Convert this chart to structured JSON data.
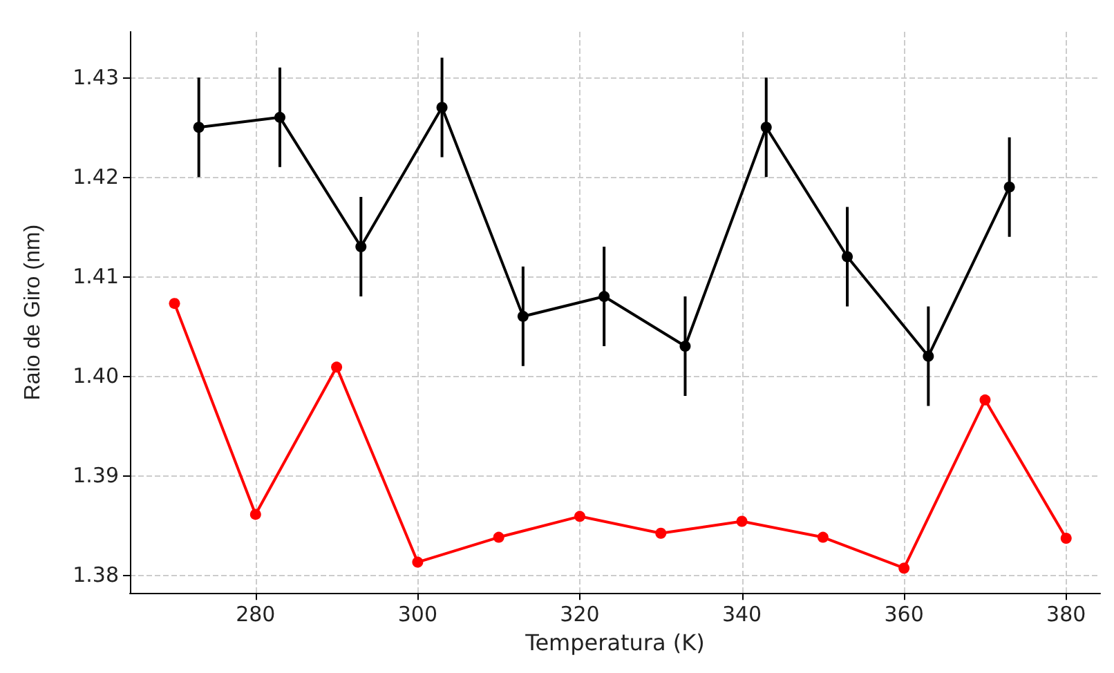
{
  "chart_data": {
    "type": "line",
    "xlabel": "Temperatura (K)",
    "ylabel": "Raio de Giro (nm)",
    "xlim": [
      264.5,
      384.2
    ],
    "ylim": [
      1.3782,
      1.4346
    ],
    "xticks": [
      280,
      300,
      320,
      340,
      360,
      380
    ],
    "yticks": [
      {
        "value": 1.38,
        "label": "1.38"
      },
      {
        "value": 1.39,
        "label": "1.39"
      },
      {
        "value": 1.4,
        "label": "1.40"
      },
      {
        "value": 1.41,
        "label": "1.41"
      },
      {
        "value": 1.42,
        "label": "1.42"
      },
      {
        "value": 1.43,
        "label": "1.43"
      }
    ],
    "grid": true,
    "marker": "circle",
    "line_style": "solid",
    "series": [
      {
        "color": "#000000",
        "x": [
          273,
          283,
          293,
          303,
          313,
          323,
          333,
          343,
          353,
          363,
          373
        ],
        "values": [
          1.425,
          1.426,
          1.413,
          1.427,
          1.406,
          1.408,
          1.403,
          1.425,
          1.412,
          1.402,
          1.419
        ],
        "errors": [
          0.005,
          0.005,
          0.005,
          0.005,
          0.005,
          0.005,
          0.005,
          0.005,
          0.005,
          0.005,
          0.005
        ]
      },
      {
        "color": "#ff0000",
        "x": [
          270,
          280,
          290,
          300,
          310,
          320,
          330,
          340,
          350,
          360,
          370,
          380
        ],
        "values": [
          1.4073,
          1.3861,
          1.4009,
          1.3813,
          1.3838,
          1.3859,
          1.3842,
          1.3854,
          1.3838,
          1.3807,
          1.3976,
          1.3837
        ]
      }
    ]
  }
}
